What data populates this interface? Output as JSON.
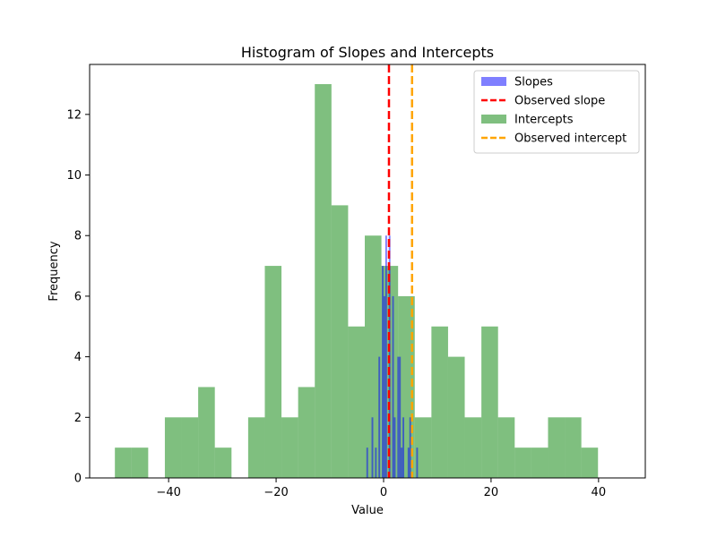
{
  "chart_data": {
    "type": "histogram",
    "title": "Histogram of Slopes and Intercepts",
    "xlabel": "Value",
    "ylabel": "Frequency",
    "xlim": [
      -54.7,
      48.7
    ],
    "ylim": [
      0,
      13.65
    ],
    "xticks": [
      -40,
      -20,
      0,
      20,
      40
    ],
    "yticks": [
      0,
      2,
      4,
      6,
      8,
      10,
      12
    ],
    "grid": false,
    "legend_position": "top-right",
    "series": [
      {
        "name": "Intercepts",
        "kind": "histogram",
        "color": "#008000",
        "opacity": 0.5,
        "bin_start": -50.0,
        "bin_width": 3.1,
        "counts": [
          1,
          1,
          0,
          2,
          2,
          3,
          1,
          0,
          2,
          7,
          2,
          3,
          13,
          9,
          5,
          8,
          7,
          6,
          2,
          5,
          4,
          2,
          5,
          2,
          1,
          1,
          2,
          2,
          1,
          0
        ]
      },
      {
        "name": "Slopes",
        "kind": "histogram",
        "color": "#0000ff",
        "opacity": 0.5,
        "bin_start": -3.2,
        "bin_width": 0.32,
        "counts": [
          1,
          0,
          0,
          2,
          0,
          1,
          0,
          4,
          0,
          7,
          6,
          8,
          0,
          8,
          0,
          6,
          2,
          0,
          4,
          4,
          1,
          2,
          0,
          0,
          1,
          2,
          0,
          0,
          0,
          1
        ]
      },
      {
        "name": "Observed slope",
        "kind": "vline",
        "x": 1.0,
        "color": "#ff0000",
        "style": "dashed"
      },
      {
        "name": "Observed intercept",
        "kind": "vline",
        "x": 5.3,
        "color": "#ffa500",
        "style": "dashed"
      }
    ],
    "legend": [
      "Slopes",
      "Observed slope",
      "Intercepts",
      "Observed intercept"
    ]
  }
}
